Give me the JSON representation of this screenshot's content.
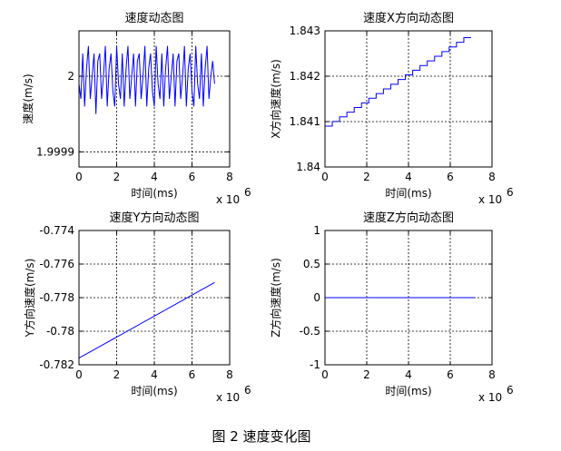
{
  "figure": {
    "caption": "图 2  速度变化图"
  },
  "chart_data": [
    {
      "type": "line",
      "title": "速度动态图",
      "xlabel": "时间(ms)",
      "ylabel": "速度(m/s)",
      "x_multiplier": "x 10",
      "x_exponent": "6",
      "xlim": [
        0,
        8
      ],
      "ylim": [
        1.99988,
        2.00006
      ],
      "xticks": [
        "0",
        "2",
        "4",
        "6",
        "8"
      ],
      "yticks": [
        {
          "value": 1.9999,
          "label": "1.9999"
        },
        {
          "value": 2.0,
          "label": "2"
        }
      ],
      "grid": true,
      "color": "#0000ff",
      "x": [
        0.0,
        0.1,
        0.2,
        0.3,
        0.4,
        0.5,
        0.6,
        0.7,
        0.8,
        0.9,
        1.0,
        1.1,
        1.2,
        1.3,
        1.4,
        1.5,
        1.6,
        1.7,
        1.8,
        1.9,
        2.0,
        2.1,
        2.2,
        2.3,
        2.4,
        2.5,
        2.6,
        2.7,
        2.8,
        2.9,
        3.0,
        3.1,
        3.2,
        3.3,
        3.4,
        3.5,
        3.6,
        3.7,
        3.8,
        3.9,
        4.0,
        4.1,
        4.2,
        4.3,
        4.4,
        4.5,
        4.6,
        4.7,
        4.8,
        4.9,
        5.0,
        5.1,
        5.2,
        5.3,
        5.4,
        5.5,
        5.6,
        5.7,
        5.8,
        5.9,
        6.0,
        6.1,
        6.2,
        6.3,
        6.4,
        6.5,
        6.6,
        6.7,
        6.8,
        6.9,
        7.0,
        7.1,
        7.2
      ],
      "y": [
        1.99999,
        1.99997,
        2.00003,
        1.99996,
        2.00001,
        2.00004,
        1.99997,
        2.0,
        2.00003,
        1.99995,
        2.00002,
        2.00003,
        1.99997,
        2.0,
        2.00004,
        1.99996,
        2.00001,
        2.00003,
        1.99998,
        1.99996,
        2.00004,
        1.99999,
        1.99997,
        2.00003,
        1.99996,
        2.00001,
        2.00004,
        1.99997,
        2.0,
        2.00003,
        1.99996,
        2.00002,
        2.00003,
        1.99997,
        2.0,
        2.00004,
        1.99996,
        2.00001,
        2.00003,
        1.99998,
        1.99996,
        2.00004,
        1.99999,
        1.99997,
        2.00003,
        1.99996,
        2.00001,
        2.00004,
        1.99997,
        2.0,
        2.00003,
        1.99996,
        2.00002,
        2.00003,
        1.99997,
        2.0,
        2.00004,
        1.99996,
        2.00001,
        2.00003,
        1.99998,
        1.99996,
        2.00004,
        1.99999,
        1.99997,
        2.00003,
        1.99996,
        2.00001,
        2.00004,
        1.99997,
        2.0,
        2.00002,
        1.99999
      ]
    },
    {
      "type": "line",
      "title": "速度X方向动态图",
      "xlabel": "时间(ms)",
      "ylabel": "X方向速度(m/s)",
      "x_multiplier": "x 10",
      "x_exponent": "6",
      "xlim": [
        0,
        8
      ],
      "ylim": [
        1.84,
        1.843
      ],
      "xticks": [
        "0",
        "2",
        "4",
        "6",
        "8"
      ],
      "yticks": [
        {
          "value": 1.84,
          "label": "1.84"
        },
        {
          "value": 1.841,
          "label": "1.841"
        },
        {
          "value": 1.842,
          "label": "1.842"
        },
        {
          "value": 1.843,
          "label": "1.843"
        }
      ],
      "grid": true,
      "color": "#0000ff",
      "x": [
        0,
        7.0
      ],
      "y": [
        1.8409,
        1.84285
      ],
      "steps": 20
    },
    {
      "type": "line",
      "title": "速度Y方向动态图",
      "xlabel": "时间(ms)",
      "ylabel": "Y方向速度(m/s)",
      "x_multiplier": "x 10",
      "x_exponent": "6",
      "xlim": [
        0,
        8
      ],
      "ylim": [
        -0.782,
        -0.774
      ],
      "xticks": [
        "0",
        "2",
        "4",
        "6",
        "8"
      ],
      "yticks": [
        {
          "value": -0.782,
          "label": "-0.782"
        },
        {
          "value": -0.78,
          "label": "-0.78"
        },
        {
          "value": -0.778,
          "label": "-0.778"
        },
        {
          "value": -0.776,
          "label": "-0.776"
        },
        {
          "value": -0.774,
          "label": "-0.774"
        }
      ],
      "grid": true,
      "color": "#0000ff",
      "x": [
        0,
        7.2
      ],
      "y": [
        -0.7816,
        -0.7771
      ]
    },
    {
      "type": "line",
      "title": "速度Z方向动态图",
      "xlabel": "时间(ms)",
      "ylabel": "Z方向速度(m/s)",
      "x_multiplier": "x 10",
      "x_exponent": "6",
      "xlim": [
        0,
        8
      ],
      "ylim": [
        -1,
        1
      ],
      "xticks": [
        "0",
        "2",
        "4",
        "6",
        "8"
      ],
      "yticks": [
        {
          "value": -1,
          "label": "-1"
        },
        {
          "value": -0.5,
          "label": "-0.5"
        },
        {
          "value": 0,
          "label": "0"
        },
        {
          "value": 0.5,
          "label": "0.5"
        },
        {
          "value": 1,
          "label": "1"
        }
      ],
      "grid": true,
      "color": "#0000ff",
      "x": [
        0,
        7.2
      ],
      "y": [
        0,
        0
      ]
    }
  ]
}
